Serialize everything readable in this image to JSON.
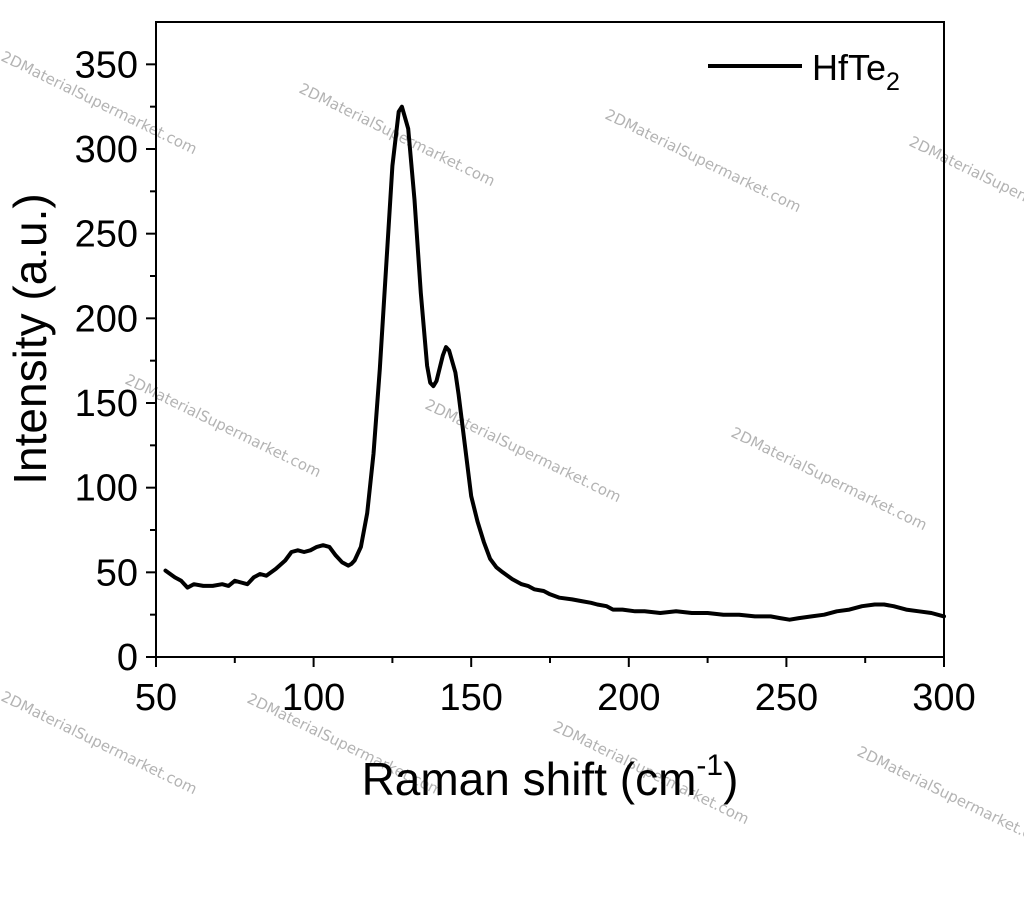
{
  "chart_data": {
    "type": "line",
    "xlabel": "Raman shift (cm",
    "xlabel_sup": "-1",
    "xlabel_end": ")",
    "ylabel": "Intensity (a.u.)",
    "xlim": [
      50,
      300
    ],
    "ylim": [
      0,
      375
    ],
    "xticks": [
      50,
      100,
      150,
      200,
      250,
      300
    ],
    "yticks": [
      0,
      50,
      100,
      150,
      200,
      250,
      300,
      350
    ],
    "legend_position": "top-right",
    "series": [
      {
        "name": "HfTe",
        "name_sub": "2",
        "color": "#000000",
        "points": [
          [
            53,
            51
          ],
          [
            56,
            47
          ],
          [
            58,
            45
          ],
          [
            60,
            41
          ],
          [
            62,
            43
          ],
          [
            65,
            42
          ],
          [
            68,
            42
          ],
          [
            71,
            43
          ],
          [
            73,
            42
          ],
          [
            75,
            45
          ],
          [
            77,
            44
          ],
          [
            79,
            43
          ],
          [
            81,
            47
          ],
          [
            83,
            49
          ],
          [
            85,
            48
          ],
          [
            88,
            52
          ],
          [
            91,
            57
          ],
          [
            93,
            62
          ],
          [
            95,
            63
          ],
          [
            97,
            62
          ],
          [
            99,
            63
          ],
          [
            101,
            65
          ],
          [
            103,
            66
          ],
          [
            105,
            65
          ],
          [
            107,
            60
          ],
          [
            109,
            56
          ],
          [
            111,
            54
          ],
          [
            112,
            55
          ],
          [
            113,
            57
          ],
          [
            115,
            65
          ],
          [
            117,
            85
          ],
          [
            119,
            120
          ],
          [
            121,
            170
          ],
          [
            123,
            230
          ],
          [
            125,
            290
          ],
          [
            127,
            322
          ],
          [
            128,
            325
          ],
          [
            130,
            312
          ],
          [
            132,
            270
          ],
          [
            134,
            215
          ],
          [
            136,
            172
          ],
          [
            137,
            162
          ],
          [
            138,
            160
          ],
          [
            139,
            163
          ],
          [
            141,
            178
          ],
          [
            142,
            183
          ],
          [
            143,
            181
          ],
          [
            145,
            168
          ],
          [
            146,
            155
          ],
          [
            148,
            125
          ],
          [
            150,
            95
          ],
          [
            152,
            80
          ],
          [
            154,
            68
          ],
          [
            156,
            58
          ],
          [
            158,
            53
          ],
          [
            160,
            50
          ],
          [
            163,
            46
          ],
          [
            166,
            43
          ],
          [
            168,
            42
          ],
          [
            170,
            40
          ],
          [
            173,
            39
          ],
          [
            175,
            37
          ],
          [
            178,
            35
          ],
          [
            182,
            34
          ],
          [
            185,
            33
          ],
          [
            188,
            32
          ],
          [
            190,
            31
          ],
          [
            193,
            30
          ],
          [
            195,
            28
          ],
          [
            198,
            28
          ],
          [
            202,
            27
          ],
          [
            205,
            27
          ],
          [
            210,
            26
          ],
          [
            215,
            27
          ],
          [
            220,
            26
          ],
          [
            225,
            26
          ],
          [
            230,
            25
          ],
          [
            235,
            25
          ],
          [
            240,
            24
          ],
          [
            245,
            24
          ],
          [
            248,
            23
          ],
          [
            251,
            22
          ],
          [
            254,
            23
          ],
          [
            258,
            24
          ],
          [
            262,
            25
          ],
          [
            266,
            27
          ],
          [
            270,
            28
          ],
          [
            274,
            30
          ],
          [
            278,
            31
          ],
          [
            281,
            31
          ],
          [
            284,
            30
          ],
          [
            288,
            28
          ],
          [
            292,
            27
          ],
          [
            296,
            26
          ],
          [
            300,
            24
          ]
        ]
      }
    ]
  },
  "watermarks": [
    "2DMaterialSupermarket.com",
    "2DMaterialSupermarket.com",
    "2DMaterialSupermarket.com",
    "2DMaterialSupermarket.com",
    "2DMaterialSupermarket.com",
    "2DMaterialSupermarket.com",
    "2DMaterialSupermarket.com",
    "2DMaterialSupermarket.com",
    "2DMaterialSupermarket.com",
    "2DMaterialSupermarket.com",
    "2DMaterialSupermarket.com"
  ]
}
